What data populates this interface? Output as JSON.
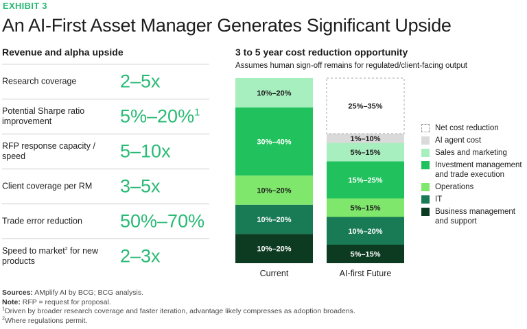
{
  "exhibit_label": "EXHIBIT 3",
  "title": "An AI-First Asset Manager Generates Significant Upside",
  "left_panel": {
    "heading": "Revenue and alpha upside",
    "metrics": [
      {
        "label": "Research coverage",
        "value": "2–5x",
        "label_note": "",
        "value_note": ""
      },
      {
        "label": "Potential Sharpe ratio improvement",
        "value": "5%–20%",
        "label_note": "",
        "value_note": "1"
      },
      {
        "label": "RFP response capacity / speed",
        "value": "5–10x",
        "label_note": "",
        "value_note": ""
      },
      {
        "label": "Client coverage per RM",
        "value": "3–5x",
        "label_note": "",
        "value_note": ""
      },
      {
        "label": "Trade error reduction",
        "value": "50%–70%",
        "label_note": "",
        "value_note": ""
      },
      {
        "label": "Speed to market for new products",
        "value": "2–3x",
        "label_note": "2",
        "value_note": ""
      }
    ]
  },
  "right_panel": {
    "heading": "3 to 5 year cost reduction opportunity",
    "subheading": "Assumes human sign-off remains for regulated/client-facing output"
  },
  "colors": {
    "accent": "#29ba74",
    "net_cost_reduction": "#ffffff",
    "ai_agent_cost": "#dadada",
    "sales_and_marketing": "#a8efbf",
    "investment_management": "#21c25d",
    "operations": "#7fe76b",
    "it": "#197a56",
    "business_management": "#0d3b21"
  },
  "chart_data": {
    "type": "bar",
    "stacked": true,
    "categories": [
      "Current",
      "AI-first Future"
    ],
    "series": [
      {
        "name": "Business management and support",
        "labels": [
          "10%–20%",
          "5%–15%"
        ],
        "values": [
          15,
          10
        ],
        "color": "#0d3b21",
        "text_color": "#ffffff"
      },
      {
        "name": "IT",
        "labels": [
          "10%–20%",
          "10%–20%"
        ],
        "values": [
          15,
          15
        ],
        "color": "#197a56",
        "text_color": "#ffffff"
      },
      {
        "name": "Operations",
        "labels": [
          "10%–20%",
          "5%–15%"
        ],
        "values": [
          15,
          10
        ],
        "color": "#7fe76b",
        "text_color": "#1d1d1d"
      },
      {
        "name": "Investment management and trade execution",
        "labels": [
          "30%–40%",
          "15%–25%"
        ],
        "values": [
          35,
          20
        ],
        "color": "#21c25d",
        "text_color": "#ffffff"
      },
      {
        "name": "Sales and marketing",
        "labels": [
          "10%–20%",
          "5%–15%"
        ],
        "values": [
          15,
          10
        ],
        "color": "#a8efbf",
        "text_color": "#1d1d1d"
      },
      {
        "name": "AI agent cost",
        "labels": [
          null,
          "1%–10%"
        ],
        "values": [
          0,
          5
        ],
        "color": "#dadada",
        "text_color": "#1d1d1d"
      },
      {
        "name": "Net cost reduction",
        "labels": [
          null,
          "25%–35%"
        ],
        "values": [
          0,
          30
        ],
        "color": "#ffffff",
        "text_color": "#1d1d1d",
        "dashed": true
      }
    ],
    "legend": [
      {
        "name": "Net cost reduction",
        "color": "#ffffff",
        "dashed": true
      },
      {
        "name": "AI agent cost",
        "color": "#dadada"
      },
      {
        "name": "Sales and marketing",
        "color": "#a8efbf"
      },
      {
        "name": "Investment management and trade execution",
        "color": "#21c25d"
      },
      {
        "name": "Operations",
        "color": "#7fe76b"
      },
      {
        "name": "IT",
        "color": "#197a56"
      },
      {
        "name": "Business management and support",
        "color": "#0d3b21"
      }
    ],
    "legend_position": "right"
  },
  "footnotes": {
    "sources_label": "Sources:",
    "sources_text": "AMplify AI by BCG; BCG analysis.",
    "note_label": "Note:",
    "note_text": "RFP = request for proposal.",
    "fn1_mark": "1",
    "fn1_text": "Driven by broader research coverage and faster iteration, advantage likely compresses as adoption broadens.",
    "fn2_mark": "2",
    "fn2_text": "Where regulations permit."
  }
}
